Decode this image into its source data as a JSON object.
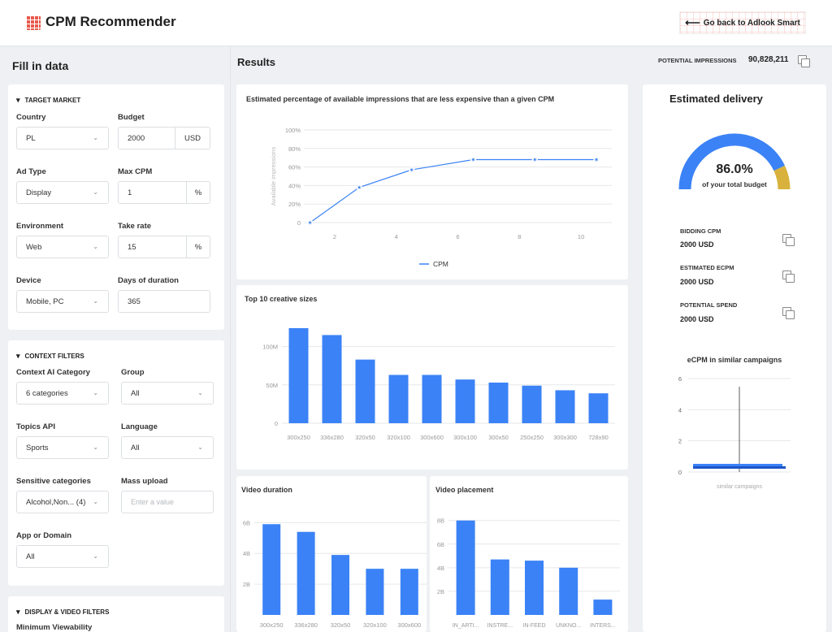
{
  "header": {
    "title": "CPM Recommender",
    "back_label": "Go back to Adlook Smart"
  },
  "left": {
    "title": "Fill in data",
    "target_market": {
      "heading": "TARGET MARKET",
      "country": {
        "label": "Country",
        "value": "PL"
      },
      "budget": {
        "label": "Budget",
        "value": "2000",
        "unit": "USD"
      },
      "ad_type": {
        "label": "Ad Type",
        "value": "Display"
      },
      "max_cpm": {
        "label": "Max CPM",
        "value": "1",
        "unit": "%"
      },
      "environment": {
        "label": "Environment",
        "value": "Web"
      },
      "take_rate": {
        "label": "Take rate",
        "value": "15",
        "unit": "%"
      },
      "device": {
        "label": "Device",
        "value": "Mobile, PC"
      },
      "duration": {
        "label": "Days of duration",
        "value": "365"
      }
    },
    "context_filters": {
      "heading": "CONTEXT FILTERS",
      "ai_category": {
        "label": "Context AI Category",
        "value": "6 categories"
      },
      "group": {
        "label": "Group",
        "value": "All"
      },
      "topics": {
        "label": "Topics API",
        "value": "Sports"
      },
      "language": {
        "label": "Language",
        "value": "All"
      },
      "sensitive": {
        "label": "Sensitive categories",
        "value": "Alcohol,Non... (4)"
      },
      "mass_upload": {
        "label": "Mass upload",
        "placeholder": "Enter a value"
      },
      "app_domain": {
        "label": "App or Domain",
        "value": "All"
      }
    },
    "display_video": {
      "heading": "DISPLAY & VIDEO FILTERS",
      "min_viewability": "Minimum Viewability"
    }
  },
  "results": {
    "title": "Results",
    "potential_label": "POTENTIAL IMPRESSIONS",
    "potential_value": "90,828,211"
  },
  "delivery": {
    "title": "Estimated delivery",
    "percent": "86.0%",
    "percent_value": 86.0,
    "subtitle": "of your total budget",
    "metrics": [
      {
        "label": "BIDDING CPM",
        "value": "2000 USD"
      },
      {
        "label": "ESTIMATED ECPM",
        "value": "2000 USD"
      },
      {
        "label": "POTENTIAL SPEND",
        "value": "2000 USD"
      }
    ]
  },
  "colors": {
    "accent": "#3b82f6",
    "gauge_blue": "#3b82f6",
    "gauge_gold": "#d8b23c",
    "brand": "#e8594c"
  },
  "chart_data": [
    {
      "type": "line",
      "title": "Estimated percentage of available impressions that are less expensive than a given CPM",
      "ylabel": "Available impressions",
      "x": [
        1.2,
        2.8,
        4.5,
        6.5,
        8.5,
        10.5
      ],
      "values": [
        0,
        38,
        57,
        68,
        68,
        68
      ],
      "ylim": [
        0,
        100
      ],
      "xticks": [
        "2",
        "4",
        "6",
        "8",
        "10"
      ],
      "yticks": [
        "0",
        "20%",
        "40%",
        "60%",
        "80%",
        "100%"
      ],
      "series": [
        {
          "name": "CPM"
        }
      ],
      "legend": "bottom"
    },
    {
      "type": "bar",
      "title": "Top 10 creative sizes",
      "categories": [
        "300x250",
        "336x280",
        "320x50",
        "320x100",
        "300x600",
        "300x100",
        "300x50",
        "250x250",
        "300x300",
        "728x90"
      ],
      "values": [
        124,
        115,
        83,
        63,
        63,
        57,
        53,
        49,
        43,
        39
      ],
      "ylim": [
        0,
        125
      ],
      "yticks": [
        "0",
        "50M",
        "100M"
      ]
    },
    {
      "type": "bar",
      "title": "Video duration",
      "categories": [
        "300x250",
        "336x280",
        "320x50",
        "320x100",
        "300x600"
      ],
      "values": [
        5.9,
        5.4,
        3.9,
        3.0,
        3.0
      ],
      "ylim": [
        0,
        6.6
      ],
      "yticks": [
        "2B",
        "4B",
        "6B"
      ]
    },
    {
      "type": "bar",
      "title": "Video placement",
      "categories": [
        "IN_ARTI...",
        "INSTRE...",
        "IN-FEED",
        "UNKNO...",
        "INTERS..."
      ],
      "values": [
        8.0,
        4.7,
        4.6,
        4.0,
        1.3
      ],
      "ylim": [
        0,
        8.6
      ],
      "yticks": [
        "2B",
        "4B",
        "6B",
        "8B"
      ]
    },
    {
      "type": "bar",
      "title": "eCPM in similar campaigns",
      "categories": [
        "similar campaigns"
      ],
      "yticks": [
        "0",
        "2",
        "4",
        "6"
      ],
      "ylim": [
        0,
        6
      ]
    }
  ]
}
